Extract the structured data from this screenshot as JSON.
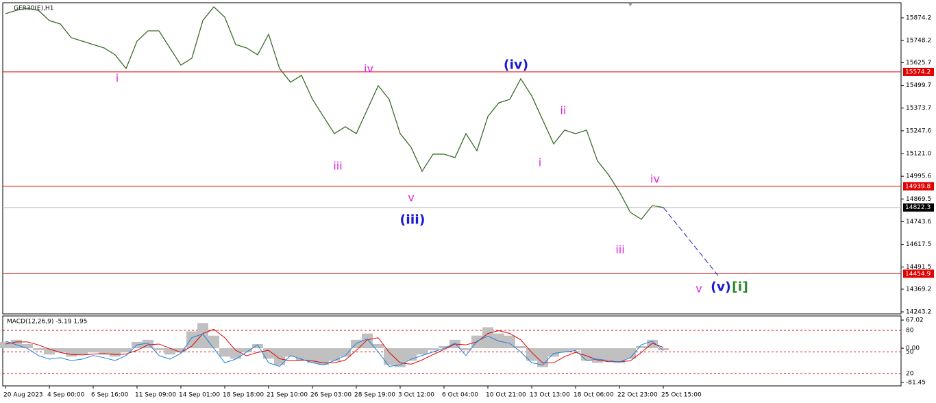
{
  "chart_data": [
    {
      "type": "line",
      "title": "GER30(E),H1",
      "categories": [
        "20 Aug 2023",
        null,
        null,
        null,
        "4 Sep 00:00",
        null,
        null,
        null,
        "6 Sep 16:00",
        null,
        null,
        null,
        "11 Sep 09:00",
        null,
        null,
        null,
        "14 Sep 01:00",
        null,
        null,
        null,
        "18 Sep 18:00",
        null,
        null,
        null,
        "21 Sep 10:00",
        null,
        null,
        null,
        "26 Sep 03:00",
        null,
        null,
        null,
        "28 Sep 19:00",
        null,
        null,
        null,
        "3 Oct 12:00",
        null,
        null,
        null,
        "6 Oct 04:00",
        null,
        null,
        null,
        "10 Oct 21:00",
        null,
        null,
        null,
        "13 Oct 13:00",
        null,
        null,
        null,
        "18 Oct 06:00",
        null,
        null,
        null,
        "22 Oct 23:00",
        null,
        null,
        null,
        "25 Oct 15:00"
      ],
      "series": [
        {
          "color": "#3a6a2a",
          "values": [
            15897,
            15916,
            15927,
            15916,
            15859,
            15840,
            15764,
            15745,
            15726,
            15707,
            15669,
            15593,
            15745,
            15802,
            15802,
            15707,
            15612,
            15650,
            15859,
            15935,
            15878,
            15726,
            15707,
            15669,
            15783,
            15593,
            15517,
            15555,
            15422,
            15327,
            15232,
            15270,
            15232,
            15365,
            15498,
            15422,
            15232,
            15156,
            15023,
            15118,
            15118,
            15099,
            15232,
            15137,
            15327,
            15403,
            15422,
            15536,
            15441,
            15308,
            15175,
            15251,
            15232,
            15251,
            15080,
            15004,
            14909,
            14795,
            14757,
            14833,
            14822.3
          ]
        }
      ],
      "ylim": [
        14232,
        15954
      ],
      "yticks": [
        15874.2,
        15748.2,
        15625.7,
        15499.7,
        15373.7,
        15247.6,
        {
          "value": 15121.0,
          "label": "15121.0"
        },
        14995.6,
        14869.5,
        14743.6,
        14617.5,
        14491.5,
        14369.2,
        14243.2
      ],
      "hlines": [
        {
          "value": 15574.2,
          "color": "#e00000"
        },
        {
          "value": 14939.8,
          "color": "#e00000"
        },
        {
          "value": 14822.3,
          "color": "#c0c0c0"
        },
        {
          "value": 14454.9,
          "color": "#e00000"
        }
      ],
      "annotations": [
        {
          "text": "i",
          "color": "#e020e0"
        },
        {
          "text": "iii",
          "color": "#e020e0"
        },
        {
          "text": "iv",
          "color": "#e020e0"
        },
        {
          "text": "v",
          "color": "#e020e0"
        },
        {
          "text": "(iii)",
          "color": "#1a1ad0"
        },
        {
          "text": "(iv)",
          "color": "#1a1ad0"
        },
        {
          "text": "ii",
          "color": "#e020e0"
        },
        {
          "text": "i",
          "color": "#e020e0"
        },
        {
          "text": "iii",
          "color": "#e020e0"
        },
        {
          "text": "iv",
          "color": "#e020e0"
        },
        {
          "text": "v",
          "color": "#e020e0"
        },
        {
          "text": "(v)",
          "color": "#1a1ad0"
        },
        {
          "text": "[i]",
          "color": "#2a8a2a"
        }
      ]
    },
    {
      "type": "macd",
      "title": "MACD(12,26,9) -5.19 1.95",
      "series": [
        {
          "color": "#c0c0c0",
          "values": [
            15,
            20,
            10,
            -5,
            -15,
            -10,
            -20,
            -15,
            -10,
            -15,
            -20,
            -10,
            15,
            20,
            -5,
            -15,
            -10,
            40,
            60,
            30,
            -20,
            -25,
            -10,
            10,
            -25,
            -40,
            -20,
            -30,
            -35,
            -40,
            -30,
            -20,
            20,
            35,
            10,
            -40,
            -45,
            -30,
            -15,
            -5,
            5,
            20,
            -5,
            30,
            50,
            35,
            30,
            5,
            -30,
            -45,
            -20,
            -10,
            -5,
            -30,
            -35,
            -30,
            -35,
            -25,
            5,
            20,
            -5
          ]
        },
        {
          "color": "#e00000",
          "values": [
            10,
            15,
            15,
            8,
            -2,
            -10,
            -15,
            -16,
            -14,
            -13,
            -15,
            -14,
            -5,
            8,
            10,
            0,
            -10,
            5,
            35,
            45,
            25,
            -5,
            -18,
            -10,
            -5,
            -25,
            -30,
            -28,
            -30,
            -35,
            -35,
            -28,
            -5,
            20,
            25,
            -10,
            -35,
            -38,
            -28,
            -15,
            -3,
            10,
            8,
            15,
            35,
            42,
            35,
            20,
            -10,
            -35,
            -35,
            -20,
            -10,
            -18,
            -28,
            -32,
            -32,
            -30,
            -10,
            12,
            2
          ]
        },
        {
          "color": "#2080e0",
          "axis": "y2",
          "values": [
            65,
            60,
            55,
            45,
            40,
            42,
            38,
            40,
            45,
            42,
            38,
            45,
            60,
            62,
            45,
            40,
            48,
            70,
            75,
            55,
            35,
            40,
            50,
            60,
            35,
            30,
            45,
            40,
            35,
            32,
            38,
            45,
            62,
            68,
            50,
            30,
            32,
            40,
            45,
            50,
            55,
            62,
            45,
            65,
            72,
            65,
            62,
            50,
            35,
            32,
            48,
            50,
            52,
            38,
            40,
            38,
            36,
            42,
            60,
            65,
            52
          ]
        }
      ],
      "ylim": [
        -89.6,
        76.8
      ],
      "yticks": [
        67.02,
        {
          "value": 0,
          "label": "0.00"
        },
        -81.45
      ],
      "y2lim": [
        2.9,
        100
      ],
      "y2ticks": [
        80,
        50,
        20
      ]
    }
  ]
}
